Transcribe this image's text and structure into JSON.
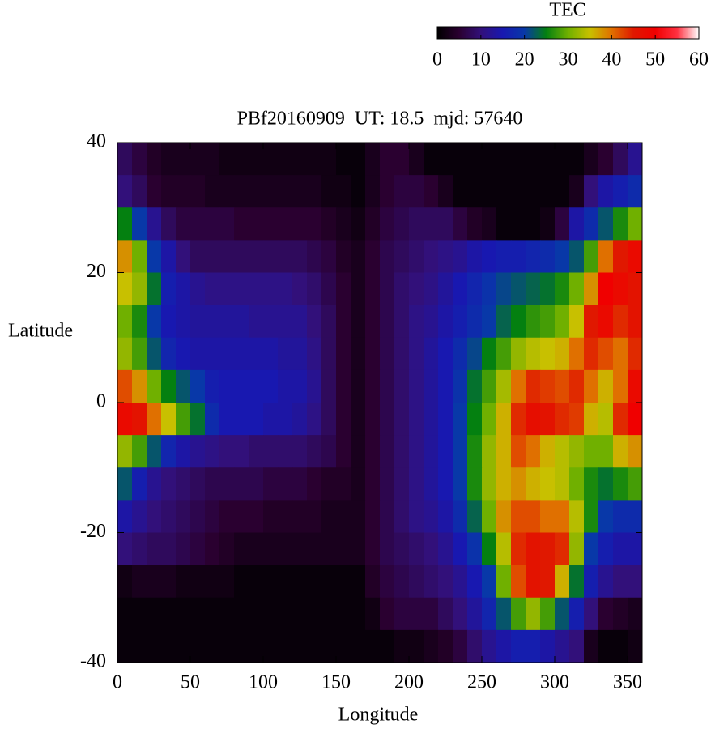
{
  "chart_data": {
    "type": "heatmap",
    "title": "PBf20160909  UT: 18.5  mjd: 57640",
    "x_label": "Longitude",
    "y_label": "Latitude",
    "xlim": [
      0,
      360
    ],
    "xticks": [
      0,
      50,
      100,
      150,
      200,
      250,
      300,
      350
    ],
    "ylim": [
      -40,
      40
    ],
    "yticks": [
      -40,
      -20,
      0,
      20,
      40
    ],
    "x": [
      5,
      15,
      25,
      35,
      45,
      55,
      65,
      75,
      85,
      95,
      105,
      115,
      125,
      135,
      145,
      155,
      165,
      175,
      185,
      195,
      205,
      215,
      225,
      235,
      245,
      255,
      265,
      275,
      285,
      295,
      305,
      315,
      325,
      335,
      345,
      355
    ],
    "y": [
      37.5,
      32.5,
      27.5,
      22.5,
      17.5,
      12.5,
      7.5,
      2.5,
      -2.5,
      -7.5,
      -12.5,
      -17.5,
      -22.5,
      -27.5,
      -32.5,
      -37.5
    ],
    "z": [
      [
        8,
        6,
        4,
        3,
        3,
        3,
        3,
        2,
        2,
        2,
        2,
        2,
        2,
        2,
        2,
        1,
        1,
        3,
        5,
        5,
        3,
        1,
        1,
        1,
        1,
        1,
        1,
        1,
        1,
        1,
        1,
        1,
        3,
        5,
        8,
        12
      ],
      [
        10,
        8,
        5,
        4,
        4,
        4,
        3,
        3,
        3,
        3,
        3,
        3,
        3,
        3,
        2,
        2,
        1,
        3,
        5,
        6,
        6,
        5,
        3,
        1,
        1,
        1,
        1,
        1,
        1,
        1,
        1,
        3,
        10,
        14,
        16,
        18
      ],
      [
        25,
        20,
        12,
        8,
        6,
        6,
        6,
        6,
        5,
        5,
        5,
        5,
        5,
        5,
        4,
        3,
        2,
        4,
        6,
        7,
        8,
        8,
        8,
        6,
        4,
        3,
        1,
        1,
        1,
        2,
        6,
        14,
        18,
        22,
        26,
        30
      ],
      [
        38,
        30,
        20,
        14,
        10,
        8,
        8,
        8,
        8,
        8,
        8,
        8,
        8,
        7,
        6,
        4,
        3,
        5,
        7,
        8,
        9,
        10,
        11,
        12,
        14,
        15,
        16,
        16,
        17,
        18,
        20,
        22,
        28,
        40,
        45,
        48
      ],
      [
        35,
        32,
        24,
        16,
        14,
        12,
        11,
        11,
        11,
        11,
        11,
        11,
        10,
        9,
        7,
        5,
        3,
        5,
        7,
        9,
        10,
        11,
        13,
        15,
        17,
        19,
        21,
        22,
        23,
        24,
        26,
        30,
        38,
        50,
        48,
        46
      ],
      [
        30,
        26,
        20,
        15,
        14,
        13,
        13,
        13,
        13,
        12,
        12,
        12,
        12,
        10,
        8,
        5,
        3,
        5,
        7,
        9,
        11,
        12,
        14,
        16,
        18,
        20,
        23,
        25,
        27,
        28,
        30,
        35,
        45,
        48,
        44,
        46
      ],
      [
        32,
        28,
        22,
        17,
        15,
        14,
        14,
        14,
        14,
        14,
        14,
        13,
        13,
        11,
        8,
        5,
        3,
        5,
        7,
        9,
        11,
        13,
        15,
        18,
        21,
        25,
        28,
        32,
        34,
        35,
        36,
        40,
        44,
        42,
        40,
        44
      ],
      [
        42,
        38,
        30,
        25,
        22,
        20,
        16,
        15,
        15,
        15,
        15,
        14,
        14,
        12,
        8,
        5,
        3,
        5,
        7,
        9,
        11,
        13,
        15,
        19,
        24,
        28,
        33,
        40,
        44,
        43,
        42,
        44,
        40,
        36,
        40,
        48
      ],
      [
        48,
        46,
        40,
        35,
        28,
        24,
        18,
        15,
        15,
        15,
        14,
        14,
        13,
        11,
        8,
        5,
        3,
        5,
        7,
        9,
        11,
        13,
        15,
        20,
        25,
        30,
        36,
        44,
        47,
        46,
        44,
        43,
        36,
        34,
        44,
        50
      ],
      [
        32,
        28,
        22,
        17,
        14,
        12,
        11,
        10,
        10,
        9,
        9,
        9,
        9,
        8,
        7,
        5,
        3,
        5,
        7,
        9,
        11,
        13,
        15,
        20,
        26,
        32,
        36,
        42,
        40,
        36,
        34,
        32,
        30,
        30,
        36,
        38
      ],
      [
        22,
        16,
        12,
        10,
        9,
        8,
        7,
        7,
        7,
        7,
        6,
        6,
        6,
        5,
        4,
        4,
        3,
        5,
        7,
        9,
        11,
        13,
        15,
        20,
        26,
        32,
        36,
        38,
        36,
        35,
        34,
        30,
        26,
        24,
        26,
        28
      ],
      [
        14,
        12,
        10,
        9,
        8,
        7,
        6,
        5,
        5,
        5,
        4,
        4,
        4,
        4,
        3,
        3,
        3,
        5,
        7,
        9,
        11,
        12,
        14,
        18,
        23,
        30,
        38,
        42,
        42,
        40,
        40,
        34,
        26,
        20,
        18,
        18
      ],
      [
        10,
        9,
        8,
        8,
        7,
        6,
        5,
        4,
        3,
        3,
        3,
        3,
        3,
        3,
        3,
        3,
        3,
        5,
        7,
        8,
        9,
        10,
        12,
        15,
        19,
        25,
        34,
        44,
        46,
        45,
        44,
        32,
        20,
        16,
        14,
        14
      ],
      [
        2,
        3,
        3,
        3,
        2,
        2,
        2,
        2,
        1,
        1,
        1,
        1,
        1,
        1,
        1,
        1,
        1,
        4,
        6,
        7,
        8,
        9,
        10,
        12,
        15,
        20,
        30,
        42,
        46,
        45,
        36,
        24,
        16,
        12,
        10,
        10
      ],
      [
        1,
        1,
        1,
        1,
        1,
        1,
        1,
        1,
        1,
        1,
        1,
        1,
        1,
        1,
        1,
        1,
        1,
        2,
        5,
        6,
        6,
        6,
        8,
        10,
        13,
        17,
        22,
        28,
        32,
        28,
        22,
        16,
        10,
        5,
        4,
        3
      ],
      [
        1,
        1,
        1,
        1,
        1,
        1,
        1,
        1,
        1,
        1,
        1,
        1,
        1,
        1,
        1,
        1,
        1,
        1,
        1,
        2,
        2,
        3,
        4,
        6,
        9,
        12,
        14,
        16,
        16,
        14,
        12,
        10,
        3,
        1,
        1,
        2
      ]
    ],
    "colorbar": {
      "label": "TEC",
      "zlim": [
        0,
        60
      ],
      "ticks": [
        0,
        10,
        20,
        30,
        40,
        50,
        60
      ]
    },
    "colorscale": [
      [
        0,
        "#000000"
      ],
      [
        5,
        "#2a0030"
      ],
      [
        10,
        "#32107a"
      ],
      [
        15,
        "#1818b0"
      ],
      [
        20,
        "#0838a8"
      ],
      [
        25,
        "#048010"
      ],
      [
        30,
        "#70b000"
      ],
      [
        35,
        "#c8c000"
      ],
      [
        40,
        "#e07000"
      ],
      [
        45,
        "#e01800"
      ],
      [
        50,
        "#f00000"
      ],
      [
        55,
        "#ff3040"
      ],
      [
        60,
        "#ffffff"
      ]
    ]
  }
}
